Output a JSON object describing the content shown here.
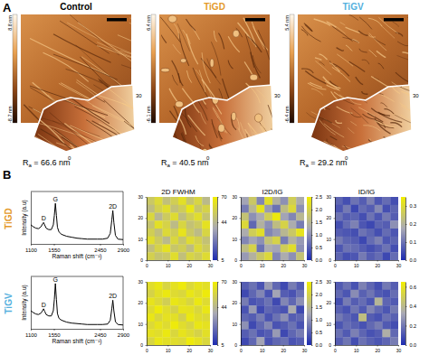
{
  "panels": [
    {
      "label": "A"
    },
    {
      "label": "B"
    }
  ],
  "afm": [
    {
      "title": "Control",
      "title_color": "#000000",
      "colorbar_labels": [
        "8.8 nm",
        "-8.7 nm"
      ],
      "ra": {
        "symbol": "R",
        "subscript": "a",
        "text": " = 66.6 nm"
      },
      "inset_labels": [
        "30",
        "0"
      ]
    },
    {
      "title": "TiGD",
      "title_color": "#e49a2b",
      "colorbar_labels": [
        "6.4 nm",
        "-6.1 nm"
      ],
      "ra": {
        "symbol": "R",
        "subscript": "a",
        "text": " = 40.5 nm"
      },
      "inset_labels": [
        "30",
        "0"
      ]
    },
    {
      "title": "TiGV",
      "title_color": "#54b0de",
      "colorbar_labels": [
        "5.4 nm",
        "-6.4 nm"
      ],
      "ra": {
        "symbol": "R",
        "subscript": "a",
        "text": " = 29.2 nm"
      },
      "inset_labels": [
        "30",
        "0"
      ]
    }
  ],
  "rows": [
    {
      "label": "TiGD",
      "color": "#e49a2b"
    },
    {
      "label": "TiGV",
      "color": "#54b0de"
    }
  ],
  "chart_data": [
    {
      "type": "line",
      "x_label": "Raman shift (cm⁻¹)",
      "y_label": "Intensity (a.u)",
      "x": [
        1100,
        1150,
        1200,
        1250,
        1300,
        1330,
        1350,
        1370,
        1400,
        1450,
        1500,
        1540,
        1560,
        1580,
        1600,
        1620,
        1650,
        1700,
        1800,
        1900,
        2000,
        2100,
        2200,
        2300,
        2400,
        2500,
        2600,
        2650,
        2680,
        2700,
        2720,
        2750,
        2800,
        2900
      ],
      "values": [
        0.4,
        0.36,
        0.33,
        0.32,
        0.36,
        0.42,
        0.45,
        0.4,
        0.33,
        0.3,
        0.3,
        0.4,
        0.6,
        0.85,
        0.6,
        0.35,
        0.25,
        0.2,
        0.16,
        0.14,
        0.12,
        0.11,
        0.1,
        0.1,
        0.1,
        0.1,
        0.12,
        0.22,
        0.5,
        0.7,
        0.45,
        0.18,
        0.1,
        0.09
      ],
      "color": "#000000",
      "xlim": [
        1100,
        2900
      ],
      "xticks": [
        1100,
        1550,
        2450,
        2900
      ],
      "ylim": [
        0,
        1.1
      ],
      "tick_labels": "x",
      "annotations": [
        {
          "text": "D",
          "x": 1350
        },
        {
          "text": "G",
          "x": 1580
        },
        {
          "text": "2D",
          "x": 2700
        }
      ]
    },
    {
      "type": "heatmap",
      "title": "2D FWHM",
      "z": [
        [
          52,
          60,
          48,
          55,
          63,
          50,
          58,
          45
        ],
        [
          47,
          56,
          62,
          49,
          54,
          66,
          51,
          57
        ],
        [
          59,
          44,
          53,
          61,
          47,
          55,
          62,
          50
        ],
        [
          50,
          63,
          57,
          46,
          58,
          49,
          53,
          64
        ],
        [
          55,
          48,
          60,
          54,
          65,
          52,
          46,
          58
        ],
        [
          62,
          53,
          45,
          59,
          50,
          61,
          56,
          49
        ],
        [
          48,
          57,
          64,
          51,
          55,
          47,
          60,
          53
        ],
        [
          56,
          50,
          52,
          62,
          48,
          58,
          54,
          61
        ]
      ],
      "xlim": [
        0,
        30
      ],
      "xticks": [
        0,
        10,
        20,
        30
      ],
      "ylim": [
        0,
        30
      ],
      "yticks": [
        0,
        10,
        20,
        30
      ],
      "colorbar_range": [
        5,
        70
      ],
      "colorbar_ticks": [
        5,
        44,
        70
      ]
    },
    {
      "type": "heatmap",
      "title": "I2D/IG",
      "z": [
        [
          1.2,
          1.8,
          0.9,
          2.2,
          1.4,
          1.0,
          1.9,
          1.3
        ],
        [
          0.8,
          1.5,
          2.3,
          1.1,
          0.7,
          1.6,
          2.1,
          1.0
        ],
        [
          1.7,
          1.0,
          1.3,
          1.9,
          2.4,
          1.2,
          0.9,
          1.5
        ],
        [
          2.1,
          0.6,
          1.4,
          1.0,
          1.6,
          2.0,
          1.3,
          0.8
        ],
        [
          1.3,
          1.9,
          2.2,
          0.9,
          1.1,
          1.5,
          1.8,
          2.3
        ],
        [
          0.9,
          1.2,
          1.0,
          1.7,
          2.0,
          0.8,
          1.4,
          1.1
        ],
        [
          1.6,
          2.0,
          0.7,
          1.3,
          1.2,
          1.9,
          2.2,
          1.0
        ],
        [
          1.1,
          1.4,
          1.8,
          2.1,
          0.9,
          1.3,
          1.0,
          1.7
        ]
      ],
      "xlim": [
        0,
        30
      ],
      "xticks": [
        0,
        10,
        20,
        30
      ],
      "ylim": [
        0,
        30
      ],
      "yticks": [
        0,
        10,
        20,
        30
      ],
      "colorbar_range": [
        0,
        2.5
      ],
      "colorbar_ticks": [
        {
          "value": 0,
          "label": "0.0"
        },
        {
          "value": 0.5,
          "label": "0.5"
        },
        {
          "value": 1,
          "label": "1.0"
        },
        {
          "value": 1.5,
          "label": "1.5"
        },
        {
          "value": 2,
          "label": "2.0"
        },
        {
          "value": 2.5,
          "label": "2.5"
        }
      ]
    },
    {
      "type": "heatmap",
      "title": "ID/IG",
      "z": [
        [
          0.08,
          0.05,
          0.1,
          0.07,
          0.12,
          0.06,
          0.09,
          0.05
        ],
        [
          0.06,
          0.11,
          0.04,
          0.09,
          0.07,
          0.13,
          0.05,
          0.08
        ],
        [
          0.1,
          0.07,
          0.08,
          0.05,
          0.1,
          0.06,
          0.11,
          0.07
        ],
        [
          0.05,
          0.09,
          0.12,
          0.06,
          0.04,
          0.08,
          0.07,
          0.14
        ],
        [
          0.07,
          0.06,
          0.05,
          0.1,
          0.08,
          0.05,
          0.09,
          0.06
        ],
        [
          0.11,
          0.08,
          0.07,
          0.04,
          0.09,
          0.12,
          0.06,
          0.08
        ],
        [
          0.06,
          0.1,
          0.09,
          0.07,
          0.05,
          0.07,
          0.1,
          0.05
        ],
        [
          0.08,
          0.05,
          0.06,
          0.11,
          0.07,
          0.09,
          0.04,
          0.09
        ]
      ],
      "xlim": [
        0,
        30
      ],
      "xticks": [
        0,
        10,
        20,
        30
      ],
      "ylim": [
        0,
        30
      ],
      "yticks": [
        0,
        10,
        20,
        30
      ],
      "colorbar_range": [
        0,
        0.35
      ],
      "colorbar_ticks": [
        {
          "value": 0,
          "label": "0.0"
        },
        0.1,
        0.2,
        0.3
      ]
    },
    {
      "type": "line",
      "x_label": "Raman shift (cm⁻¹)",
      "y_label": "Intensity (a.u)",
      "x": [
        1100,
        1150,
        1200,
        1250,
        1300,
        1330,
        1350,
        1370,
        1400,
        1450,
        1500,
        1540,
        1560,
        1580,
        1600,
        1620,
        1650,
        1700,
        1800,
        1900,
        2000,
        2100,
        2200,
        2300,
        2400,
        2500,
        2600,
        2650,
        2680,
        2700,
        2720,
        2750,
        2800,
        2900
      ],
      "values": [
        0.38,
        0.34,
        0.31,
        0.3,
        0.33,
        0.38,
        0.42,
        0.37,
        0.3,
        0.27,
        0.27,
        0.38,
        0.62,
        0.95,
        0.62,
        0.32,
        0.22,
        0.18,
        0.14,
        0.12,
        0.11,
        0.1,
        0.09,
        0.09,
        0.09,
        0.09,
        0.1,
        0.18,
        0.42,
        0.6,
        0.38,
        0.15,
        0.09,
        0.08
      ],
      "color": "#000000",
      "xlim": [
        1100,
        2900
      ],
      "xticks": [
        1100,
        1550,
        2450,
        2900
      ],
      "ylim": [
        0,
        1.1
      ],
      "tick_labels": "x",
      "annotations": [
        {
          "text": "D",
          "x": 1350
        },
        {
          "text": "G",
          "x": 1580
        },
        {
          "text": "2D",
          "x": 2700
        }
      ]
    },
    {
      "type": "heatmap",
      "z": [
        [
          62,
          66,
          58,
          64,
          68,
          60,
          65,
          63
        ],
        [
          57,
          63,
          67,
          61,
          59,
          66,
          62,
          68
        ],
        [
          65,
          60,
          55,
          66,
          63,
          58,
          67,
          61
        ],
        [
          61,
          68,
          62,
          57,
          65,
          64,
          59,
          66
        ],
        [
          66,
          59,
          64,
          63,
          56,
          67,
          62,
          60
        ],
        [
          60,
          65,
          61,
          68,
          62,
          58,
          66,
          64
        ],
        [
          64,
          62,
          67,
          59,
          65,
          61,
          57,
          63
        ],
        [
          58,
          66,
          63,
          62,
          60,
          68,
          64,
          59
        ]
      ],
      "xlim": [
        0,
        30
      ],
      "xticks": [
        0,
        10,
        20,
        30
      ],
      "ylim": [
        0,
        30
      ],
      "yticks": [
        0,
        10,
        20,
        30
      ],
      "colorbar_range": [
        5,
        70
      ],
      "colorbar_ticks": [
        5,
        44,
        70
      ]
    },
    {
      "type": "heatmap",
      "z": [
        [
          0.5,
          0.7,
          0.4,
          1.1,
          0.6,
          0.3,
          0.8,
          0.5
        ],
        [
          0.3,
          0.6,
          0.9,
          0.4,
          1.2,
          0.5,
          0.4,
          0.7
        ],
        [
          0.8,
          0.4,
          0.5,
          0.7,
          0.3,
          0.9,
          0.6,
          1.0
        ],
        [
          0.4,
          1.1,
          0.3,
          0.6,
          0.5,
          0.4,
          1.3,
          0.3
        ],
        [
          0.6,
          0.5,
          0.8,
          0.4,
          0.7,
          1.0,
          0.5,
          0.6
        ],
        [
          1.0,
          0.3,
          0.6,
          0.9,
          0.4,
          0.5,
          0.7,
          0.4
        ],
        [
          0.5,
          0.7,
          0.4,
          0.5,
          1.1,
          0.3,
          0.6,
          0.8
        ],
        [
          0.3,
          0.6,
          1.2,
          0.4,
          0.6,
          0.7,
          0.4,
          0.5
        ]
      ],
      "xlim": [
        0,
        30
      ],
      "xticks": [
        0,
        10,
        20,
        30
      ],
      "ylim": [
        0,
        30
      ],
      "yticks": [
        0,
        10,
        20,
        30
      ],
      "colorbar_range": [
        0,
        2.5
      ],
      "colorbar_ticks": [
        {
          "value": 0,
          "label": "0.0"
        },
        {
          "value": 0.5,
          "label": "0.5"
        },
        {
          "value": 1,
          "label": "1.0"
        },
        {
          "value": 1.5,
          "label": "1.5"
        },
        {
          "value": 2,
          "label": "2.0"
        },
        {
          "value": 2.5,
          "label": "2.5"
        }
      ]
    },
    {
      "type": "heatmap",
      "z": [
        [
          0.12,
          0.18,
          0.1,
          0.22,
          0.15,
          0.09,
          0.2,
          0.13
        ],
        [
          0.16,
          0.11,
          0.25,
          0.14,
          0.19,
          0.12,
          0.1,
          0.17
        ],
        [
          0.09,
          0.21,
          0.13,
          0.17,
          0.11,
          0.38,
          0.15,
          0.12
        ],
        [
          0.14,
          0.1,
          0.19,
          0.12,
          0.23,
          0.16,
          0.11,
          0.2
        ],
        [
          0.2,
          0.15,
          0.11,
          0.42,
          0.13,
          0.1,
          0.18,
          0.14
        ],
        [
          0.11,
          0.17,
          0.14,
          0.1,
          0.16,
          0.21,
          0.12,
          0.09
        ],
        [
          0.18,
          0.12,
          0.22,
          0.15,
          0.1,
          0.13,
          0.35,
          0.16
        ],
        [
          0.13,
          0.19,
          0.09,
          0.18,
          0.14,
          0.11,
          0.15,
          0.21
        ]
      ],
      "xlim": [
        0,
        30
      ],
      "xticks": [
        0,
        10,
        20,
        30
      ],
      "ylim": [
        0,
        30
      ],
      "yticks": [
        0,
        10,
        20,
        30
      ],
      "colorbar_range": [
        0,
        0.65
      ],
      "colorbar_ticks": [
        {
          "value": 0,
          "label": "0.0"
        },
        0.2,
        0.4,
        0.6
      ]
    }
  ]
}
